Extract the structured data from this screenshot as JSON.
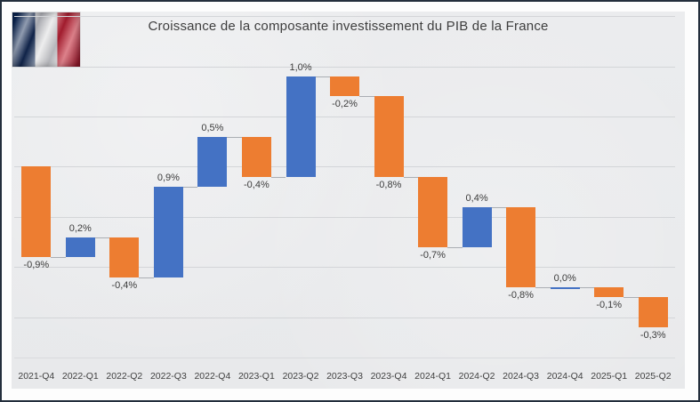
{
  "chart_data": {
    "type": "waterfall-bar",
    "title": "Croissance de la composante investissement du PIB de la France",
    "categories": [
      "2021-Q4",
      "2022-Q1",
      "2022-Q2",
      "2022-Q3",
      "2022-Q4",
      "2023-Q1",
      "2023-Q2",
      "2023-Q3",
      "2023-Q4",
      "2024-Q1",
      "2024-Q2",
      "2024-Q3",
      "2024-Q4",
      "2025-Q1",
      "2025-Q2"
    ],
    "values": [
      -0.9,
      0.2,
      -0.4,
      0.9,
      0.5,
      -0.4,
      1.0,
      -0.2,
      -0.8,
      -0.7,
      0.4,
      -0.8,
      0.0,
      -0.1,
      -0.3
    ],
    "data_labels": [
      "-0,9%",
      "0,2%",
      "-0,4%",
      "0,9%",
      "0,5%",
      "-0,4%",
      "1,0%",
      "-0,2%",
      "-0,8%",
      "-0,7%",
      "0,4%",
      "-0,8%",
      "0,0%",
      "-0,1%",
      "-0,3%"
    ],
    "start_value": 0,
    "unit": "%",
    "ylim": [
      -1.9,
      1.5
    ],
    "gridline_values": [
      1.5,
      1.0,
      0.5,
      0.0,
      -0.5,
      -1.0,
      -1.5
    ],
    "grid": true,
    "y_axis_labels_visible": false,
    "legend": "none",
    "increase_color": "#4472C4",
    "decrease_color": "#ED7D31",
    "zero_color": "#4472C4",
    "connector_color": "#aaaeb3",
    "label_color": "#3c3c3c",
    "background_color": "#e9eaec",
    "frame_color": "#232e3c"
  },
  "flag": {
    "blue": "#0a234f",
    "white": "#dcdcdd",
    "red": "#c11a2b"
  }
}
